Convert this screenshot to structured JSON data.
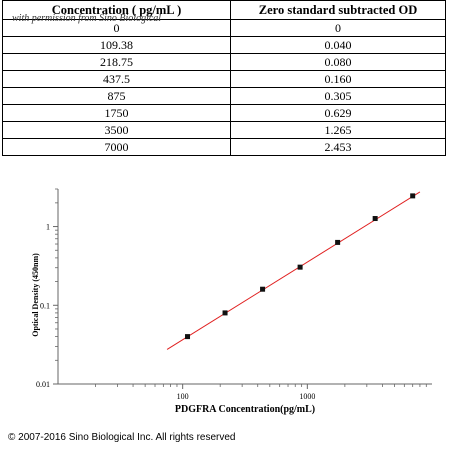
{
  "table": {
    "headers": [
      "Concentration ( pg/mL )",
      "Zero standard subtracted OD"
    ],
    "watermark": "with permission from Sino Biological",
    "rows": [
      [
        "0",
        "0"
      ],
      [
        "109.38",
        "0.040"
      ],
      [
        "218.75",
        "0.080"
      ],
      [
        "437.5",
        "0.160"
      ],
      [
        "875",
        "0.305"
      ],
      [
        "1750",
        "0.629"
      ],
      [
        "3500",
        "1.265"
      ],
      [
        "7000",
        "2.453"
      ]
    ]
  },
  "chart_data": {
    "type": "scatter",
    "xlabel": "PDGFRA  Concentration(pg/mL)",
    "ylabel": "Optical Density (450nm)",
    "x_scale": "log",
    "y_scale": "log",
    "xlim": [
      10,
      10000
    ],
    "ylim": [
      0.01,
      3
    ],
    "x_ticks": [
      "100",
      "1000"
    ],
    "y_ticks": [
      "0.01",
      "0.1",
      "1"
    ],
    "points": {
      "x": [
        109.38,
        218.75,
        437.5,
        875,
        1750,
        3500,
        7000
      ],
      "y": [
        0.04,
        0.08,
        0.16,
        0.305,
        0.629,
        1.265,
        2.453
      ]
    },
    "fit_line": {
      "x": [
        75,
        8000
      ],
      "y": [
        0.0275,
        2.75
      ]
    },
    "colors": {
      "fit_line": "#e02020",
      "points": "#111111",
      "axes": "#666666"
    }
  },
  "footer": "© 2007-2016 Sino Biological Inc. All rights reserved"
}
